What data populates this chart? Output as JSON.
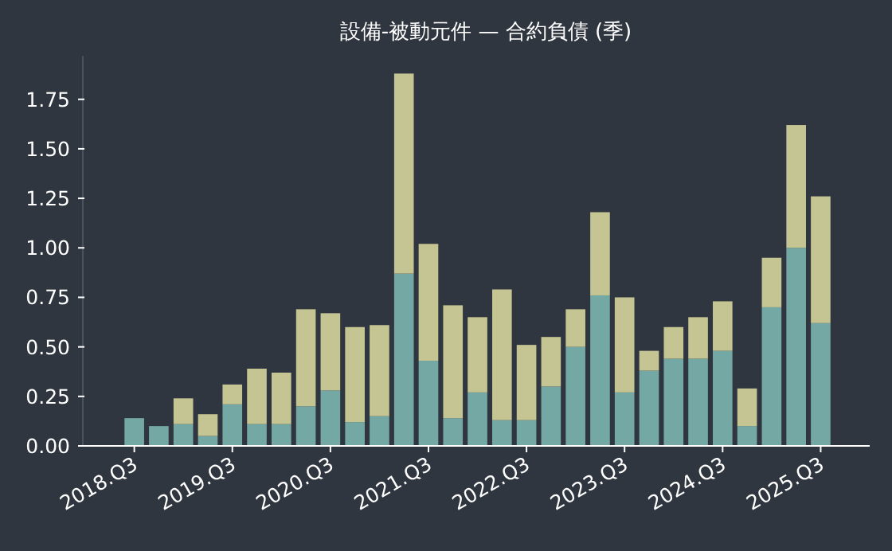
{
  "chart_data": {
    "type": "bar",
    "title": "設備-被動元件 — 合約負債 (季)",
    "stacked": true,
    "categories": [
      "2018.Q3",
      null,
      null,
      null,
      "2019.Q3",
      null,
      null,
      null,
      "2020.Q3",
      null,
      null,
      null,
      "2021.Q3",
      null,
      null,
      null,
      "2022.Q3",
      null,
      null,
      null,
      "2023.Q3",
      null,
      null,
      null,
      "2024.Q3",
      null,
      null,
      null,
      "2025.Q3"
    ],
    "series": [
      {
        "color": "#74a8a4",
        "values": [
          0.14,
          0.1,
          0.11,
          0.05,
          0.21,
          0.11,
          0.11,
          0.2,
          0.28,
          0.12,
          0.15,
          0.87,
          0.43,
          0.14,
          0.27,
          0.13,
          0.13,
          0.3,
          0.5,
          0.76,
          0.27,
          0.38,
          0.44,
          0.44,
          0.48,
          0.1,
          0.7,
          1.0,
          0.62
        ]
      },
      {
        "color": "#c5c593",
        "values": [
          0,
          0,
          0.13,
          0.11,
          0.1,
          0.28,
          0.26,
          0.49,
          0.39,
          0.48,
          0.46,
          1.01,
          0.59,
          0.57,
          0.38,
          0.66,
          0.38,
          0.25,
          0.19,
          0.42,
          0.48,
          0.1,
          0.16,
          0.21,
          0.25,
          0.19,
          0.25,
          0.62,
          0.64
        ]
      }
    ],
    "ylim": [
      0,
      1.97
    ],
    "yticks": [
      {
        "value": 0,
        "label": "0.00"
      },
      {
        "value": 0.25,
        "label": "0.25"
      },
      {
        "value": 0.5,
        "label": "0.50"
      },
      {
        "value": 0.75,
        "label": "0.75"
      },
      {
        "value": 1,
        "label": "1.00"
      },
      {
        "value": 1.25,
        "label": "1.25"
      },
      {
        "value": 1.5,
        "label": "1.50"
      },
      {
        "value": 1.75,
        "label": "1.75"
      }
    ],
    "grid": false
  }
}
